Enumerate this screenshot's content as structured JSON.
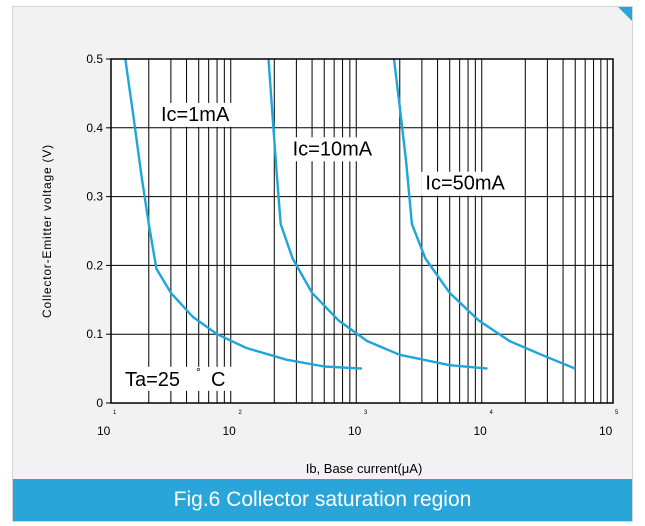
{
  "caption": "Fig.6 Collector saturation region",
  "colors": {
    "accent": "#2aa5d9",
    "curve": "#1ea6da",
    "grid": "#000000",
    "background": "#f2f2f2"
  },
  "chart_data": {
    "type": "line",
    "title": "",
    "xlabel": "Ib,  Base current(μA)",
    "ylabel": "Collector-Emitter voltage (V)",
    "x_scale": "log",
    "xlim": [
      10,
      100000
    ],
    "ylim": [
      0,
      0.5
    ],
    "x_ticks": [
      {
        "base": "10",
        "exp": "1"
      },
      {
        "base": "10",
        "exp": "2"
      },
      {
        "base": "10",
        "exp": "3"
      },
      {
        "base": "10",
        "exp": "4"
      },
      {
        "base": "10",
        "exp": "5"
      }
    ],
    "y_ticks": [
      "0",
      "0.1",
      "0.2",
      "0.3",
      "0.4",
      "0.5"
    ],
    "grid": true,
    "series": [
      {
        "name": "Ic=1mA",
        "label": "Ic=1mA",
        "points": [
          [
            13,
            0.5
          ],
          [
            15,
            0.42
          ],
          [
            17.5,
            0.33
          ],
          [
            20,
            0.26
          ],
          [
            23,
            0.195
          ],
          [
            30,
            0.16
          ],
          [
            45,
            0.125
          ],
          [
            70,
            0.1
          ],
          [
            120,
            0.08
          ],
          [
            250,
            0.063
          ],
          [
            500,
            0.053
          ],
          [
            1000,
            0.05
          ]
        ]
      },
      {
        "name": "Ic=10mA",
        "label": "Ic=10mA",
        "points": [
          [
            180,
            0.5
          ],
          [
            195,
            0.41
          ],
          [
            210,
            0.33
          ],
          [
            225,
            0.26
          ],
          [
            280,
            0.21
          ],
          [
            400,
            0.16
          ],
          [
            650,
            0.12
          ],
          [
            1100,
            0.09
          ],
          [
            2000,
            0.07
          ],
          [
            5000,
            0.055
          ],
          [
            10000,
            0.05
          ]
        ]
      },
      {
        "name": "Ic=50mA",
        "label": "Ic=50mA",
        "points": [
          [
            1800,
            0.5
          ],
          [
            2000,
            0.43
          ],
          [
            2250,
            0.35
          ],
          [
            2500,
            0.26
          ],
          [
            3200,
            0.21
          ],
          [
            5000,
            0.16
          ],
          [
            8500,
            0.12
          ],
          [
            15000,
            0.09
          ],
          [
            27000,
            0.07
          ],
          [
            50000,
            0.05
          ]
        ]
      }
    ],
    "annotations": [
      "Ta=25",
      "°",
      "C"
    ]
  }
}
